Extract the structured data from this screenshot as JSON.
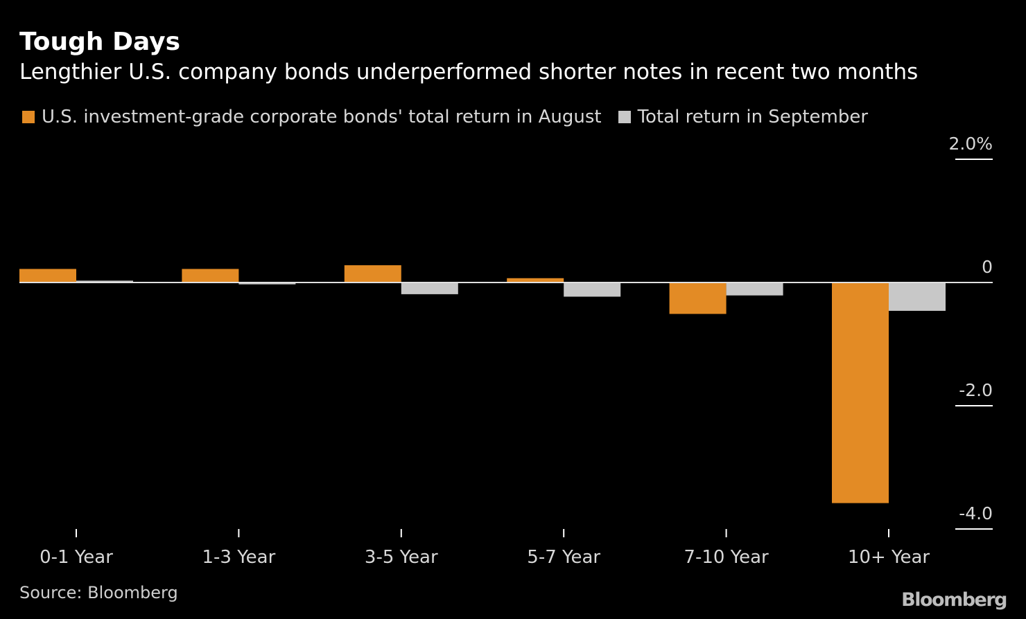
{
  "header": {
    "title": "Tough Days",
    "subtitle": "Lengthier U.S. company bonds underperformed shorter notes in recent two months"
  },
  "legend": {
    "items": [
      {
        "label": "U.S. investment-grade corporate bonds' total return in August",
        "color": "#E38B25"
      },
      {
        "label": "Total return in September",
        "color": "#C8C8C8"
      }
    ]
  },
  "footer": {
    "source": "Source: Bloomberg",
    "brand": "Bloomberg"
  },
  "chart_data": {
    "type": "bar",
    "categories": [
      "0-1 Year",
      "1-3 Year",
      "3-5 Year",
      "5-7 Year",
      "7-10 Year",
      "10+ Year"
    ],
    "series": [
      {
        "name": "U.S. investment-grade corporate bonds' total return in August",
        "color": "#E38B25",
        "values": [
          0.22,
          0.22,
          0.28,
          0.07,
          -0.51,
          -3.58
        ]
      },
      {
        "name": "Total return in September",
        "color": "#C8C8C8",
        "values": [
          0.03,
          -0.03,
          -0.19,
          -0.23,
          -0.21,
          -0.46
        ]
      }
    ],
    "ylim": [
      -4.0,
      2.0
    ],
    "yticks": [
      2.0,
      0,
      -2.0,
      -4.0
    ],
    "ytick_labels": [
      "2.0%",
      "0",
      "-2.0",
      "-4.0"
    ],
    "grid": false,
    "legend_position": "top-left",
    "colors": {
      "zero_line": "#E0E0E0",
      "axis_text": "#D8D8D8",
      "tick": "#FFFFFF"
    }
  }
}
